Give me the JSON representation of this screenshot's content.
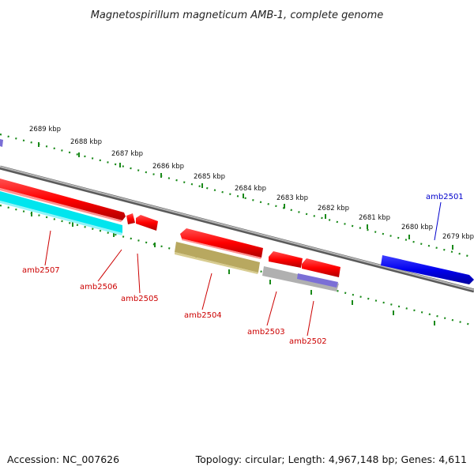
{
  "title": "Magnetospirillum magneticum AMB-1, complete genome",
  "footer": {
    "accession": "Accession: NC_007626",
    "summary": "Topology: circular; Length: 4,967,148 bp; Genes: 4,611"
  },
  "scale_labels": [
    "2689 kbp",
    "2688 kbp",
    "2687 kbp",
    "2686 kbp",
    "2685 kbp",
    "2684 kbp",
    "2683 kbp",
    "2682 kbp",
    "2681 kbp",
    "2680 kbp",
    "2679 kbp"
  ],
  "genes": [
    {
      "name": "amb2501",
      "color": "#0000cc"
    },
    {
      "name": "amb2502",
      "color": "#cc0000"
    },
    {
      "name": "amb2503",
      "color": "#cc0000"
    },
    {
      "name": "amb2504",
      "color": "#cc0000"
    },
    {
      "name": "amb2505",
      "color": "#cc0000"
    },
    {
      "name": "amb2506",
      "color": "#cc0000"
    },
    {
      "name": "amb2507",
      "color": "#cc0000"
    }
  ],
  "colors": {
    "backbone": "#8a8a8a",
    "tick": "#1a8a1a",
    "forward_gene": "#ff0000",
    "reverse_cyan": "#00e5ee",
    "reverse_olive": "#b8a860",
    "reverse_grey": "#b0b0b0",
    "reverse_purple": "#7b6fd6",
    "forward_blue": "#0000ee"
  }
}
